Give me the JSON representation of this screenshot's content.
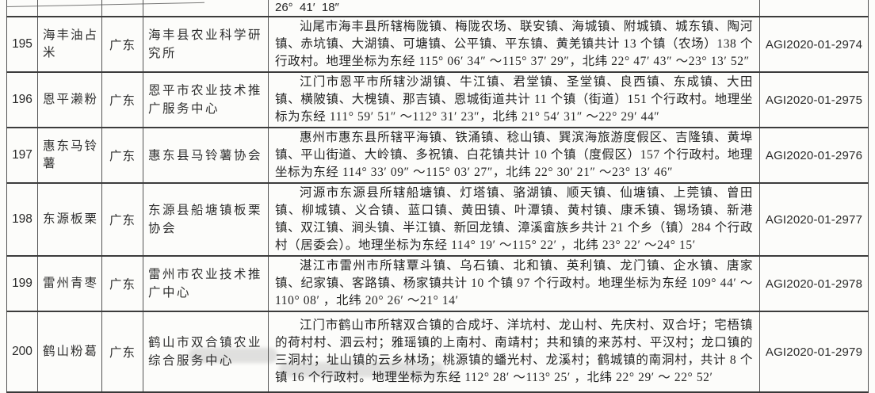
{
  "colors": {
    "page_background": "#fcfcfa",
    "table_border": "#3c3c3c",
    "text": "#262626",
    "watermark_smudge": "#afafaf"
  },
  "document": {
    "partial_row": {
      "coordinate_tail": "26°  41′  18″"
    },
    "rows": [
      {
        "no": "195",
        "name": "海丰油占米",
        "province": "广东",
        "org": "海丰县农业科学研究所",
        "desc": "汕尾市海丰县所辖梅陇镇、梅陇农场、联安镇、海城镇、附城镇、城东镇、陶河镇、赤坑镇、大湖镇、可塘镇、公平镇、平东镇、黄羌镇共计 13 个镇（农场）138 个行政村。地理坐标为东经 115° 06′ 34″ ～115° 37′ 29″，北纬 22° 47′ 43″ ～23° 13′ 52″",
        "cert": "AGI2020-01-2974"
      },
      {
        "no": "196",
        "name": "恩平濑粉",
        "province": "广东",
        "org": "恩平市农业技术推广服务中心",
        "desc": "江门市恩平市所辖沙湖镇、牛江镇、君堂镇、圣堂镇、良西镇、东成镇、大田镇、横陂镇、大槐镇、那吉镇、恩城街道共计 11 个镇（街道）151 个行政村。地理坐标为东经 111° 59′ 51″ ～112° 31′ 23″，北纬 21° 54′ 31″ ～22° 29′ 44″",
        "cert": "AGI2020-01-2975"
      },
      {
        "no": "197",
        "name": "惠东马铃薯",
        "province": "广东",
        "org": "惠东县马铃薯协会",
        "desc": "惠州市惠东县所辖平海镇、铁涌镇、稔山镇、巽滨海旅游度假区、吉隆镇、黄埠镇、平山街道、大岭镇、多祝镇、白花镇共计 10 个镇（度假区）157 个行政村。地理坐标为东经 114° 33′ 09″ ～115° 03′ 27″，北纬 22° 30′ 21″ ～23° 13′ 46″",
        "cert": "AGI2020-01-2976"
      },
      {
        "no": "198",
        "name": "东源板栗",
        "province": "广东",
        "org": "东源县船塘镇板栗协会",
        "desc": "河源市东源县所辖船塘镇、灯塔镇、骆湖镇、顺天镇、仙塘镇、上莞镇、曾田镇、柳城镇、义合镇、蓝口镇、黄田镇、叶潭镇、黄村镇、康禾镇、锡场镇、新港镇、双江镇、涧头镇、半江镇、新回龙镇、漳溪畲族乡共计 21 个乡（镇）284 个行政村（居委会）。地理坐标为东经 114° 19′ ～115° 22′ ，北纬 23° 22′ ～24° 15′",
        "cert": "AGI2020-01-2977"
      },
      {
        "no": "199",
        "name": "雷州青枣",
        "province": "广东",
        "org": "雷州市农业技术推广中心",
        "desc": "湛江市雷州市所辖覃斗镇、乌石镇、北和镇、英利镇、龙门镇、企水镇、唐家镇、纪家镇、客路镇、杨家镇共计 10 个镇 97 个行政村。地理坐标为东经 109° 44′ ～110° 08′ ，北纬 20° 26′ ～21° 14′",
        "cert": "AGI2020-01-2978"
      },
      {
        "no": "200",
        "name": "鹤山粉葛",
        "province": "广东",
        "org": "鹤山市双合镇农业综合服务中心",
        "desc": "江门市鹤山市所辖双合镇的合成圩、洋坑村、龙山村、先庆村、双合圩；宅梧镇的荷村村、泗云村；雅瑶镇的上南村、南靖村；共和镇的来苏村、平汉村；龙口镇的三洞村；址山镇的云乡林场；桃源镇的蟠光村、龙溪村；鹤城镇的南洞村，共计 8 个镇 16 个行政村。地理坐标为东经 112° 28′ ～113° 25′ ，北纬 22° 29′ ～ 22° 52′",
        "cert": "AGI2020-01-2979"
      }
    ]
  }
}
